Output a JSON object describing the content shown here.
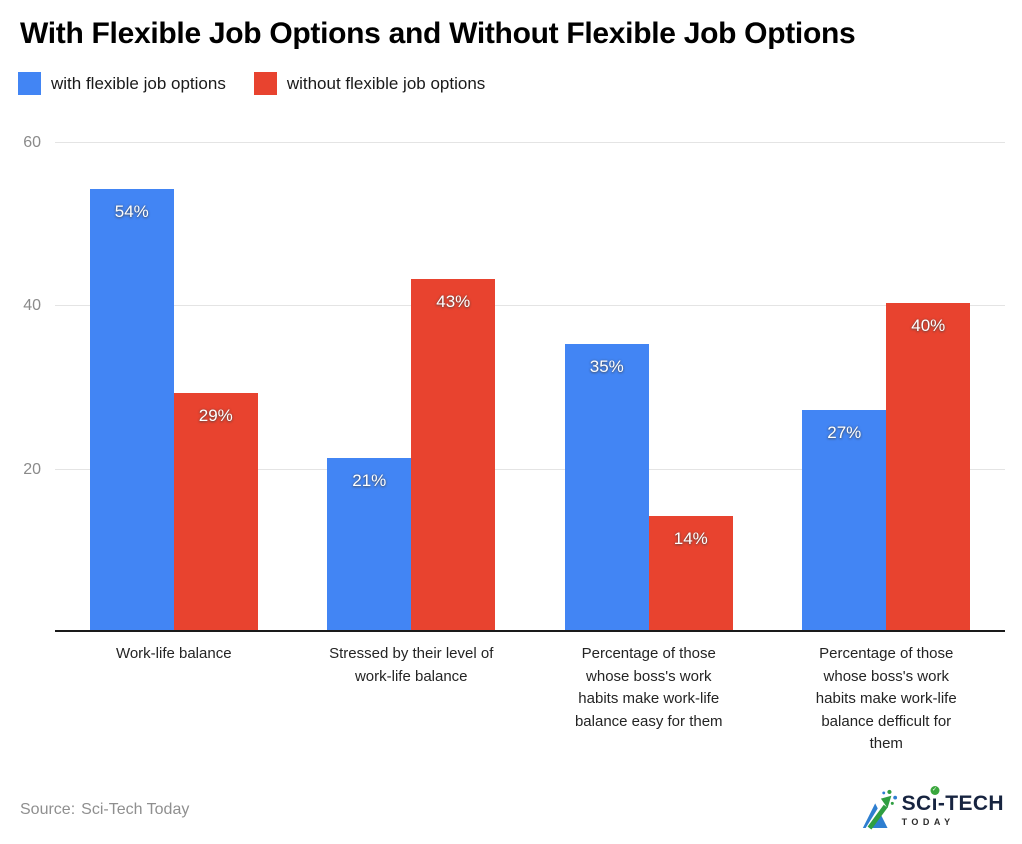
{
  "header": {
    "title": "With Flexible Job Options and Without Flexible Job Options"
  },
  "chart_data": {
    "type": "bar",
    "title": "With Flexible Job Options and Without Flexible Job Options",
    "categories": [
      "Work-life balance",
      "Stressed by their level of work-life balance",
      "Percentage of those whose boss's work habits make work-life balance easy for them",
      "Percentage of those whose boss's work habits make work-life balance defficult for them"
    ],
    "categories_wrapped": [
      "Work-life balance",
      "Stressed by their level of\nwork-life balance",
      "Percentage of those\nwhose boss's work\nhabits make work-life\nbalance easy for them",
      "Percentage of those\nwhose boss's work\nhabits make work-life\nbalance defficult for\nthem"
    ],
    "series": [
      {
        "name": "with flexible job options",
        "color": "#4285F4",
        "values": [
          54,
          21,
          35,
          27
        ],
        "labels": [
          "54%",
          "21%",
          "35%",
          "27%"
        ]
      },
      {
        "name": "without flexible job options",
        "color": "#E8432F",
        "values": [
          29,
          43,
          14,
          40
        ],
        "labels": [
          "29%",
          "43%",
          "14%",
          "40%"
        ]
      }
    ],
    "value_suffix": "%",
    "ylim": [
      0,
      60
    ],
    "ytick_labels": [
      "60",
      "40",
      "20"
    ],
    "grid": true,
    "legend_position": "top-left",
    "bar_label_position": "inside-top"
  },
  "footer": {
    "source_label": "Source:",
    "source_value": "Sci-Tech Today",
    "logo": {
      "part1": "SC",
      "i_glyph": "ı",
      "part2": "-TECH",
      "subtext": "TODAY",
      "check_glyph": "✓"
    }
  }
}
